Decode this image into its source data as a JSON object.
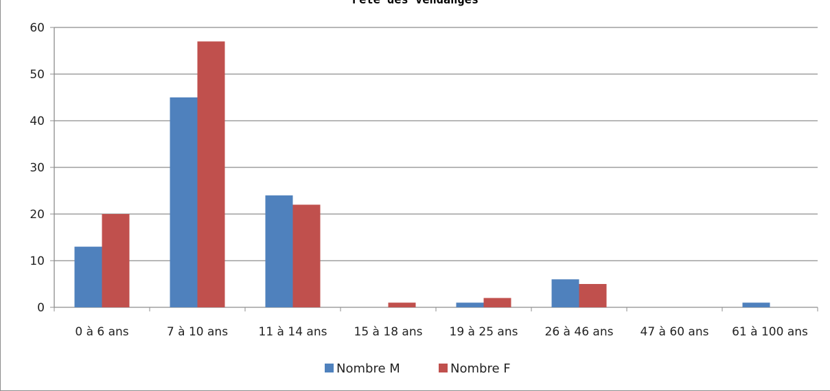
{
  "chart_data": {
    "type": "bar",
    "title": "Fête des vendanges",
    "categories": [
      "0 à 6 ans",
      "7 à 10 ans",
      "11 à 14 ans",
      "15 à 18 ans",
      "19 à 25 ans",
      "26 à 46 ans",
      "47 à 60 ans",
      "61 à 100 ans"
    ],
    "series": [
      {
        "name": "Nombre M",
        "color": "#4f81bd",
        "values": [
          13,
          45,
          24,
          0,
          1,
          6,
          0,
          1
        ]
      },
      {
        "name": "Nombre F",
        "color": "#c0504d",
        "values": [
          20,
          57,
          22,
          1,
          2,
          5,
          0,
          0
        ]
      }
    ],
    "ylim": [
      0,
      60
    ],
    "yticks": [
      0,
      10,
      20,
      30,
      40,
      50,
      60
    ],
    "grid": true,
    "legend": "bottom"
  }
}
